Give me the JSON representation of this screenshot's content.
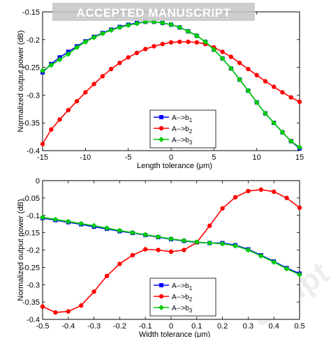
{
  "banner": "ACCEPTED MANUSCRIPT",
  "watermark": "Script",
  "chart_data": [
    {
      "type": "line",
      "xlabel": "Length tolerance (μm)",
      "ylabel": "Normalized output power (dB)",
      "xlim": [
        -15,
        15
      ],
      "ylim": [
        -0.4,
        -0.15
      ],
      "xticks": [
        -15,
        -10,
        -5,
        0,
        5,
        10,
        15
      ],
      "yticks": [
        -0.4,
        -0.35,
        -0.3,
        -0.25,
        -0.2,
        -0.15
      ],
      "xtick_labels": [
        "-15",
        "-10",
        "-5",
        "0",
        "5",
        "10",
        "15"
      ],
      "ytick_labels": [
        "-0.4",
        "-0.35",
        "-0.3",
        "-0.25",
        "-0.2",
        "-0.15"
      ],
      "grid": false,
      "legend_position": "lower-right",
      "x": [
        -15,
        -14,
        -13,
        -12,
        -11,
        -10,
        -9,
        -8,
        -7,
        -6,
        -5,
        -4,
        -3,
        -2,
        -1,
        0,
        1,
        2,
        3,
        4,
        5,
        6,
        7,
        8,
        9,
        10,
        11,
        12,
        13,
        14,
        15
      ],
      "series": [
        {
          "name": "A-->b1",
          "name_main": "A-->b",
          "name_sub": "1",
          "color": "#0000ff",
          "marker": "square",
          "values": [
            -0.259,
            -0.244,
            -0.232,
            -0.222,
            -0.212,
            -0.203,
            -0.195,
            -0.188,
            -0.182,
            -0.177,
            -0.173,
            -0.17,
            -0.168,
            -0.168,
            -0.17,
            -0.173,
            -0.178,
            -0.185,
            -0.193,
            -0.204,
            -0.218,
            -0.234,
            -0.252,
            -0.272,
            -0.292,
            -0.313,
            -0.333,
            -0.35,
            -0.367,
            -0.383,
            -0.396
          ]
        },
        {
          "name": "A-->b2",
          "name_main": "A-->b",
          "name_sub": "2",
          "color": "#ff0000",
          "marker": "circle",
          "values": [
            -0.388,
            -0.362,
            -0.344,
            -0.327,
            -0.311,
            -0.295,
            -0.28,
            -0.266,
            -0.253,
            -0.242,
            -0.232,
            -0.224,
            -0.217,
            -0.212,
            -0.208,
            -0.205,
            -0.204,
            -0.204,
            -0.205,
            -0.208,
            -0.214,
            -0.222,
            -0.231,
            -0.242,
            -0.253,
            -0.264,
            -0.275,
            -0.285,
            -0.295,
            -0.304,
            -0.312
          ]
        },
        {
          "name": "A-->b3",
          "name_main": "A-->b",
          "name_sub": "3",
          "color": "#00cc00",
          "marker": "diamond",
          "values": [
            -0.256,
            -0.246,
            -0.236,
            -0.226,
            -0.214,
            -0.204,
            -0.196,
            -0.189,
            -0.183,
            -0.178,
            -0.174,
            -0.171,
            -0.168,
            -0.168,
            -0.17,
            -0.173,
            -0.178,
            -0.185,
            -0.193,
            -0.204,
            -0.218,
            -0.234,
            -0.252,
            -0.272,
            -0.292,
            -0.313,
            -0.333,
            -0.35,
            -0.367,
            -0.383,
            -0.394
          ]
        }
      ]
    },
    {
      "type": "line",
      "xlabel": "Width tolerance (μm)",
      "ylabel": "Normalized output power (dB)",
      "xlim": [
        -0.5,
        0.5
      ],
      "ylim": [
        -0.4,
        0
      ],
      "xticks": [
        -0.5,
        -0.4,
        -0.3,
        -0.2,
        -0.1,
        0,
        0.1,
        0.2,
        0.3,
        0.4,
        0.5
      ],
      "yticks": [
        -0.4,
        -0.35,
        -0.3,
        -0.25,
        -0.2,
        -0.15,
        -0.1,
        -0.05,
        0
      ],
      "xtick_labels": [
        "-0.5",
        "-0.4",
        "-0.3",
        "-0.2",
        "-0.1",
        "0",
        "0.1",
        "0.2",
        "0.3",
        "0.4",
        "0.5"
      ],
      "ytick_labels": [
        "-0.4",
        "-0.35",
        "-0.3",
        "-0.25",
        "-0.2",
        "-0.15",
        "-0.1",
        "-0.05",
        "0"
      ],
      "grid": false,
      "legend_position": "lower-right",
      "x": [
        -0.5,
        -0.45,
        -0.4,
        -0.35,
        -0.3,
        -0.25,
        -0.2,
        -0.15,
        -0.1,
        -0.05,
        0,
        0.05,
        0.1,
        0.15,
        0.2,
        0.25,
        0.3,
        0.35,
        0.4,
        0.45,
        0.5
      ],
      "series": [
        {
          "name": "A-->b1",
          "name_main": "A-->b",
          "name_sub": "1",
          "color": "#0000ff",
          "marker": "square",
          "values": [
            -0.108,
            -0.114,
            -0.12,
            -0.126,
            -0.133,
            -0.139,
            -0.146,
            -0.151,
            -0.157,
            -0.163,
            -0.169,
            -0.174,
            -0.178,
            -0.18,
            -0.18,
            -0.186,
            -0.198,
            -0.215,
            -0.233,
            -0.252,
            -0.268
          ]
        },
        {
          "name": "A-->b2",
          "name_main": "A-->b",
          "name_sub": "2",
          "color": "#ff0000",
          "marker": "circle",
          "values": [
            -0.363,
            -0.38,
            -0.377,
            -0.36,
            -0.32,
            -0.275,
            -0.24,
            -0.215,
            -0.198,
            -0.2,
            -0.205,
            -0.2,
            -0.178,
            -0.13,
            -0.08,
            -0.048,
            -0.03,
            -0.026,
            -0.032,
            -0.05,
            -0.078
          ]
        },
        {
          "name": "A-->b3",
          "name_main": "A-->b",
          "name_sub": "3",
          "color": "#00cc00",
          "marker": "diamond",
          "values": [
            -0.106,
            -0.112,
            -0.118,
            -0.124,
            -0.13,
            -0.137,
            -0.144,
            -0.15,
            -0.156,
            -0.162,
            -0.168,
            -0.173,
            -0.177,
            -0.18,
            -0.182,
            -0.188,
            -0.2,
            -0.217,
            -0.235,
            -0.254,
            -0.271
          ]
        }
      ]
    }
  ]
}
